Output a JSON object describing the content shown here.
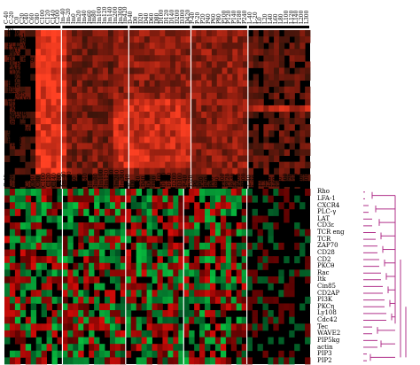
{
  "top_heatmap": {
    "columns": [
      "C-40",
      "C-20",
      "C0",
      "C20",
      "C40",
      "C60",
      "C80",
      "C100",
      "C120",
      "C140",
      "C200",
      "Im-40",
      "Im-20",
      "Im0",
      "Im20",
      "Im40",
      "Im60",
      "Im80",
      "Im100",
      "Im120",
      "Im140",
      "Im200",
      "Im300",
      "Im420",
      "D-40",
      "D0",
      "D20",
      "D40",
      "D60",
      "D80",
      "D100",
      "D120",
      "D140",
      "D200",
      "D300",
      "D420",
      "P-40",
      "P-20",
      "P20",
      "P40",
      "P60",
      "P80",
      "P100",
      "P120",
      "P140",
      "P180",
      "P240",
      "L-40",
      "L-20",
      "L0",
      "L20",
      "L40",
      "L60",
      "L80",
      "L100",
      "L120",
      "L140",
      "L200",
      "L300"
    ],
    "rows": [
      "Rho",
      "LFA-1",
      "CXCR4",
      "PLC-γ",
      "LAT",
      "CD3ε",
      "TCR eng",
      "TCR",
      "ZAP70",
      "CD28",
      "CD2",
      "PKCθ",
      "Rac",
      "Itk",
      "Cin85",
      "CD2AP",
      "PI3K",
      "PKCη",
      "Ly108",
      "Cdc42",
      "Tec",
      "WAVE2",
      "PIP5kg",
      "actin",
      "PIP3",
      "PIP2"
    ]
  },
  "bottom_heatmap": {
    "columns": [
      "C-40",
      "C-20",
      "C0",
      "C20",
      "C40",
      "C60",
      "C80",
      "C100",
      "C120",
      "C140",
      "C200",
      "Im-40",
      "Im-20",
      "Im0",
      "Im20",
      "Im40",
      "Im60",
      "Im80",
      "Im100",
      "Im120",
      "Im140",
      "Im200",
      "Im300",
      "D-40",
      "D0",
      "D20",
      "D40",
      "D60",
      "D80",
      "D100",
      "D120",
      "D140",
      "D200",
      "D300",
      "P-40",
      "P-20",
      "P0",
      "P20",
      "P40",
      "P60",
      "P80",
      "P100",
      "P120",
      "P140",
      "P200",
      "P300",
      "L-40",
      "L-20",
      "L0",
      "L20",
      "L40",
      "L60",
      "L80",
      "L100",
      "L120",
      "L140",
      "L200",
      "L300"
    ],
    "rows": [
      "Rho",
      "LFA-1",
      "CXCR4",
      "PLC-γ",
      "LAT",
      "CD3ε",
      "TCR eng",
      "TCR",
      "ZAP70",
      "CD28",
      "CD2",
      "PKCθ",
      "Rac",
      "Itk",
      "Cin85",
      "CD2AP",
      "PI3K",
      "PKCη",
      "Ly108",
      "Cdc42",
      "Tec",
      "WAVE2",
      "PIP5kg",
      "actin",
      "PIP3",
      "PIP2"
    ]
  },
  "colors": {
    "background": "#000000",
    "red": "#ff3020",
    "green": "#10c040",
    "dendrogram": "#b0308a",
    "separator": "#ffffff"
  }
}
